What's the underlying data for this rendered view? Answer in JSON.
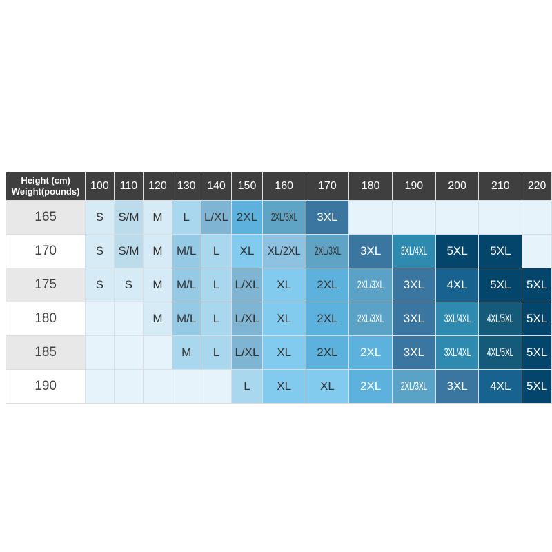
{
  "header": {
    "corner_line1": "Height (cm)",
    "corner_line2": "Weight(pounds)",
    "columns": [
      "100",
      "110",
      "120",
      "130",
      "140",
      "150",
      "160",
      "170",
      "180",
      "190",
      "200",
      "210",
      "220"
    ]
  },
  "colors": {
    "header_bg": "#3f3f3f",
    "rowhead_odd": "#e8e8e8",
    "rowhead_even": "#ffffff",
    "empty": "#e6f3fb"
  },
  "rows": [
    {
      "height": "165",
      "cells": [
        {
          "size": "S",
          "bg": "#d6ebf5"
        },
        {
          "size": "S/M",
          "bg": "#bcdcec"
        },
        {
          "size": "M",
          "bg": "#d6ebf5"
        },
        {
          "size": "L",
          "bg": "#a9d7ee"
        },
        {
          "size": "L/XL",
          "bg": "#7fb5d3"
        },
        {
          "size": "2XL",
          "bg": "#5db2dd"
        },
        {
          "size": "2XL/3XL",
          "bg": "#5fa3c5"
        },
        {
          "size": "3XL",
          "bg": "#3a76a0"
        },
        {
          "size": "",
          "bg": "#e6f3fb"
        },
        {
          "size": "",
          "bg": "#e6f3fb"
        },
        {
          "size": "",
          "bg": "#e6f3fb"
        },
        {
          "size": "",
          "bg": "#e6f3fb"
        },
        {
          "size": "",
          "bg": "#e6f3fb"
        }
      ]
    },
    {
      "height": "170",
      "cells": [
        {
          "size": "S",
          "bg": "#d6ebf5"
        },
        {
          "size": "S/M",
          "bg": "#bcdcec"
        },
        {
          "size": "M",
          "bg": "#d6ebf5"
        },
        {
          "size": "M/L",
          "bg": "#96c9e3"
        },
        {
          "size": "L",
          "bg": "#a9d7ee"
        },
        {
          "size": "XL",
          "bg": "#82cbef"
        },
        {
          "size": "XL/2XL",
          "bg": "#8fc2e0"
        },
        {
          "size": "2XL/3XL",
          "bg": "#5fa3c5"
        },
        {
          "size": "3XL",
          "bg": "#3a76a0"
        },
        {
          "size": "3XL/4XL",
          "bg": "#2e8aae"
        },
        {
          "size": "5XL",
          "bg": "#04456c"
        },
        {
          "size": "5XL",
          "bg": "#04456c"
        },
        {
          "size": "",
          "bg": "#e6f3fb"
        }
      ]
    },
    {
      "height": "175",
      "cells": [
        {
          "size": "S",
          "bg": "#d6ebf5"
        },
        {
          "size": "S",
          "bg": "#d6ebf5"
        },
        {
          "size": "M",
          "bg": "#d6ebf5"
        },
        {
          "size": "M/L",
          "bg": "#96c9e3"
        },
        {
          "size": "L",
          "bg": "#a9d7ee"
        },
        {
          "size": "L/XL",
          "bg": "#7fb5d3"
        },
        {
          "size": "XL",
          "bg": "#82cbef"
        },
        {
          "size": "2XL",
          "bg": "#5db2dd"
        },
        {
          "size": "2XL/3XL",
          "bg": "#5aa2c6",
          "light": true
        },
        {
          "size": "3XL",
          "bg": "#3a76a0"
        },
        {
          "size": "4XL",
          "bg": "#17628f"
        },
        {
          "size": "5XL",
          "bg": "#04456c"
        },
        {
          "size": "5XL",
          "bg": "#04456c"
        }
      ]
    },
    {
      "height": "180",
      "cells": [
        {
          "size": "",
          "bg": "#e6f3fb"
        },
        {
          "size": "",
          "bg": "#e6f3fb"
        },
        {
          "size": "M",
          "bg": "#d6ebf5"
        },
        {
          "size": "M/L",
          "bg": "#96c9e3"
        },
        {
          "size": "L",
          "bg": "#a9d7ee"
        },
        {
          "size": "L/XL",
          "bg": "#7fb5d3"
        },
        {
          "size": "XL",
          "bg": "#82cbef"
        },
        {
          "size": "2XL",
          "bg": "#5db2dd"
        },
        {
          "size": "2XL/3XL",
          "bg": "#5aa2c6",
          "light": true
        },
        {
          "size": "3XL",
          "bg": "#3a76a0"
        },
        {
          "size": "3XL/4XL",
          "bg": "#2e8aae"
        },
        {
          "size": "4XL/5XL",
          "bg": "#155a78"
        },
        {
          "size": "5XL",
          "bg": "#04456c"
        }
      ]
    },
    {
      "height": "185",
      "cells": [
        {
          "size": "",
          "bg": "#e6f3fb"
        },
        {
          "size": "",
          "bg": "#e6f3fb"
        },
        {
          "size": "",
          "bg": "#e6f3fb"
        },
        {
          "size": "M",
          "bg": "#a9d7ee"
        },
        {
          "size": "L",
          "bg": "#a9d7ee"
        },
        {
          "size": "L/XL",
          "bg": "#7fb5d3"
        },
        {
          "size": "XL",
          "bg": "#82cbef"
        },
        {
          "size": "2XL",
          "bg": "#5db2dd"
        },
        {
          "size": "2XL",
          "bg": "#5db2dd",
          "light": true
        },
        {
          "size": "3XL",
          "bg": "#3a76a0"
        },
        {
          "size": "3XL/4XL",
          "bg": "#2e8aae"
        },
        {
          "size": "4XL/5XL",
          "bg": "#155a78"
        },
        {
          "size": "5XL",
          "bg": "#04456c"
        }
      ]
    },
    {
      "height": "190",
      "cells": [
        {
          "size": "",
          "bg": "#e6f3fb"
        },
        {
          "size": "",
          "bg": "#e6f3fb"
        },
        {
          "size": "",
          "bg": "#e6f3fb"
        },
        {
          "size": "",
          "bg": "#e6f3fb"
        },
        {
          "size": "",
          "bg": "#e6f3fb"
        },
        {
          "size": "L",
          "bg": "#a9d7ee"
        },
        {
          "size": "XL",
          "bg": "#82cbef"
        },
        {
          "size": "XL",
          "bg": "#82cbef"
        },
        {
          "size": "2XL",
          "bg": "#5db2dd",
          "light": true
        },
        {
          "size": "2XL/3XL",
          "bg": "#5aa2c6",
          "light": true
        },
        {
          "size": "3XL",
          "bg": "#3a76a0"
        },
        {
          "size": "4XL",
          "bg": "#17628f"
        },
        {
          "size": "5XL",
          "bg": "#04456c"
        }
      ]
    }
  ]
}
